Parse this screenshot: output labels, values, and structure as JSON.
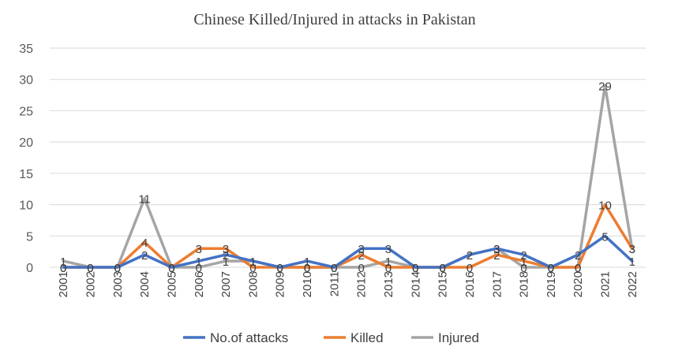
{
  "chart_data": {
    "type": "line",
    "title": "Chinese Killed/Injured in attacks in Pakistan",
    "xlabel": "",
    "ylabel": "",
    "categories": [
      "2001",
      "2002",
      "2003",
      "2004",
      "2005",
      "2006",
      "2007",
      "2008",
      "2009",
      "2010",
      "2011",
      "2012",
      "2013",
      "2014",
      "2015",
      "2016",
      "2017",
      "2018",
      "2019",
      "2020",
      "2021",
      "2022"
    ],
    "ylim": [
      0,
      35
    ],
    "yticks": [
      0,
      5,
      10,
      15,
      20,
      25,
      30,
      35
    ],
    "grid": true,
    "legend_position": "bottom",
    "series": [
      {
        "name": "No.of attacks",
        "color": "#4472c4",
        "values": [
          0,
          0,
          0,
          2,
          0,
          1,
          2,
          1,
          0,
          1,
          0,
          3,
          3,
          0,
          0,
          2,
          3,
          2,
          0,
          2,
          5,
          1
        ]
      },
      {
        "name": "Killed",
        "color": "#ed7d31",
        "values": [
          0,
          0,
          0,
          4,
          0,
          3,
          3,
          0,
          0,
          0,
          0,
          2,
          0,
          0,
          0,
          0,
          2,
          1,
          0,
          0,
          10,
          3
        ]
      },
      {
        "name": "Injured",
        "color": "#a5a5a5",
        "values": [
          1,
          0,
          0,
          11,
          0,
          0,
          1,
          1,
          0,
          0,
          0,
          0,
          1,
          0,
          0,
          2,
          3,
          0,
          0,
          0,
          29,
          3
        ]
      }
    ]
  }
}
